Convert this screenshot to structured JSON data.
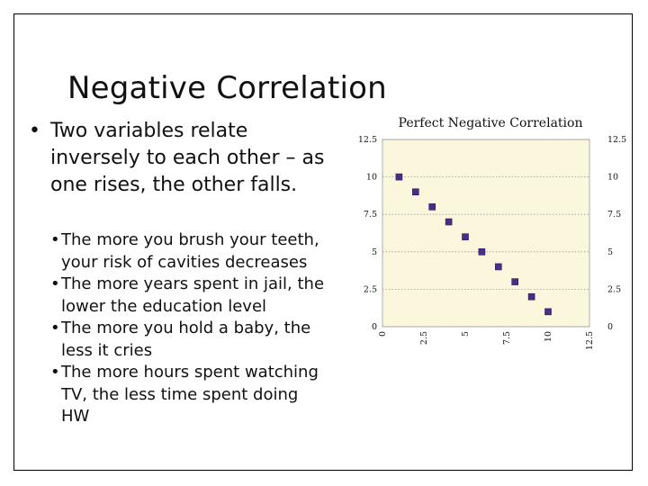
{
  "slide": {
    "title": "Negative Correlation",
    "bullet_symbol": "•",
    "main_bullet": "Two variables relate inversely to each other – as one rises, the other falls.",
    "sub_bullets": [
      "The more you brush your teeth, your risk of cavities decreases",
      "The more years spent in jail, the lower the education level",
      "The more you hold a baby, the less it cries",
      "The more hours spent watching TV, the less time spent doing HW"
    ]
  },
  "chart_data": {
    "type": "scatter",
    "title": "Perfect Negative Correlation",
    "xlabel": "",
    "ylabel": "",
    "xlim": [
      0,
      12.5
    ],
    "ylim": [
      0,
      12.5
    ],
    "x_ticks": [
      "0",
      "2.5",
      "5",
      "7.5",
      "10",
      "12.5"
    ],
    "y_ticks": [
      "0",
      "2.5",
      "5",
      "7.5",
      "10",
      "12.5"
    ],
    "grid": true,
    "plot_background": "#fbf7dd",
    "marker_color": "#4b2d87",
    "series": [
      {
        "x": [
          1,
          2,
          3,
          4,
          5,
          6,
          7,
          8,
          9,
          10
        ],
        "y": [
          10,
          9,
          8,
          7,
          6,
          5,
          4,
          3,
          2,
          1
        ]
      }
    ]
  }
}
